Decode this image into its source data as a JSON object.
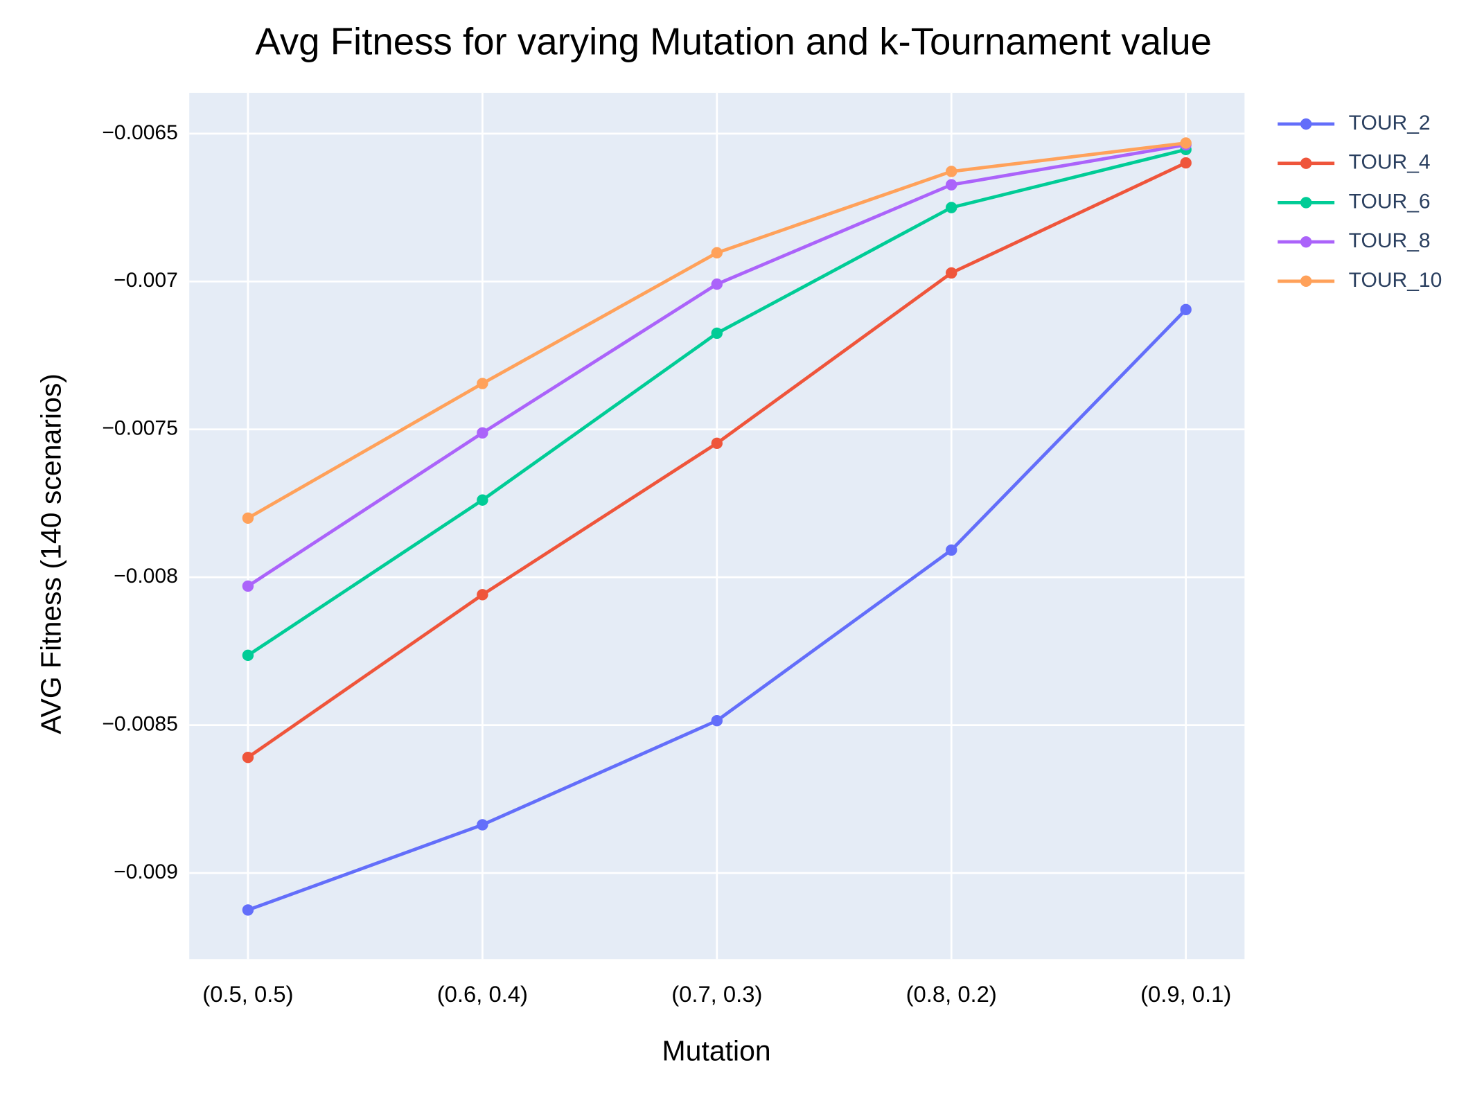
{
  "chart_data": {
    "type": "line",
    "title": "Avg Fitness for varying Mutation and k-Tournament value",
    "x_label": "Mutation",
    "y_label": "AVG Fitness (140 scenarios)",
    "categories": [
      "(0.5, 0.5)",
      "(0.6, 0.4)",
      "(0.7, 0.3)",
      "(0.8, 0.2)",
      "(0.9, 0.1)"
    ],
    "series": [
      {
        "name": "TOUR_2",
        "color": "#636efa",
        "values": [
          -0.009125,
          -0.008837,
          -0.008485,
          -0.007908,
          -0.007095
        ]
      },
      {
        "name": "TOUR_4",
        "color": "#ef553b",
        "values": [
          -0.008609,
          -0.008059,
          -0.007547,
          -0.006971,
          -0.006599
        ]
      },
      {
        "name": "TOUR_6",
        "color": "#00cc96",
        "values": [
          -0.008264,
          -0.007739,
          -0.007175,
          -0.00675,
          -0.006554
        ]
      },
      {
        "name": "TOUR_8",
        "color": "#ab63fa",
        "values": [
          -0.00803,
          -0.007512,
          -0.007009,
          -0.006673,
          -0.006538
        ]
      },
      {
        "name": "TOUR_10",
        "color": "#ffa15a",
        "values": [
          -0.0078,
          -0.007345,
          -0.006903,
          -0.006628,
          -0.006532
        ]
      }
    ],
    "ylim": [
      -0.009291,
      -0.006362
    ],
    "yticks": [
      {
        "value": -0.009,
        "label": "−0.009"
      },
      {
        "value": -0.0085,
        "label": "−0.0085"
      },
      {
        "value": -0.008,
        "label": "−0.008"
      },
      {
        "value": -0.0075,
        "label": "−0.0075"
      },
      {
        "value": -0.007,
        "label": "−0.007"
      },
      {
        "value": -0.0065,
        "label": "−0.0065"
      }
    ],
    "grid": true,
    "legend": "right"
  }
}
